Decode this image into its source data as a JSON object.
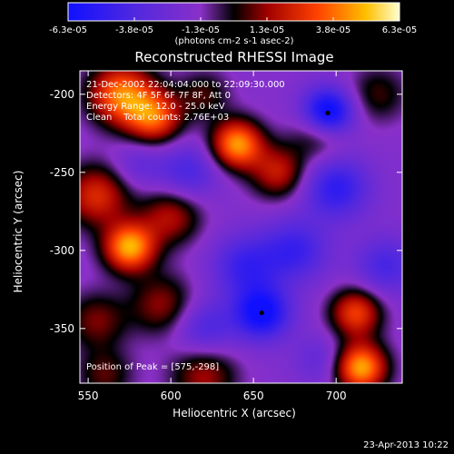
{
  "chart_data": {
    "type": "heatmap",
    "title": "Reconstructed RHESSI Image",
    "xlabel": "Heliocentric X (arcsec)",
    "ylabel": "Heliocentric Y (arcsec)",
    "xlim": [
      545,
      740
    ],
    "ylim": [
      -385,
      -185
    ],
    "xticks": [
      550,
      600,
      650,
      700
    ],
    "yticks": [
      -200,
      -250,
      -300,
      -350
    ],
    "colorbar": {
      "ticks": [
        "-6.3e-05",
        "-3.8e-05",
        "-1.3e-05",
        "1.3e-05",
        "3.8e-05",
        "6.3e-05"
      ],
      "range": [
        -6.3e-05,
        6.3e-05
      ],
      "unit_label": "(photons cm-2 s-1 asec-2)"
    },
    "info_lines": [
      "21-Dec-2002 22:04:04.000 to 22:09:30.000",
      "Detectors: 4F 5F 6F 7F 8F, Att 0",
      "Energy Range: 12.0 - 25.0 keV",
      "Clean    Total counts: 2.76E+03"
    ],
    "peak_text": "Position of Peak = [575,-298]",
    "blobs": [
      {
        "x": 575,
        "y": -298,
        "v": 6.3e-05,
        "s": 11
      },
      {
        "x": 570,
        "y": -200,
        "v": 5.5e-05,
        "s": 14
      },
      {
        "x": 590,
        "y": -215,
        "v": 4.8e-05,
        "s": 12
      },
      {
        "x": 640,
        "y": -232,
        "v": 6e-05,
        "s": 11
      },
      {
        "x": 665,
        "y": -250,
        "v": 3.5e-05,
        "s": 12
      },
      {
        "x": 555,
        "y": -265,
        "v": 4e-05,
        "s": 14
      },
      {
        "x": 600,
        "y": -278,
        "v": 3.2e-05,
        "s": 13
      },
      {
        "x": 595,
        "y": -335,
        "v": 2.8e-05,
        "s": 14
      },
      {
        "x": 555,
        "y": -345,
        "v": 2.5e-05,
        "s": 13
      },
      {
        "x": 620,
        "y": -380,
        "v": 3e-05,
        "s": 14
      },
      {
        "x": 560,
        "y": -380,
        "v": 2.2e-05,
        "s": 12
      },
      {
        "x": 715,
        "y": -375,
        "v": 6.3e-05,
        "s": 11
      },
      {
        "x": 712,
        "y": -340,
        "v": 4.5e-05,
        "s": 11
      },
      {
        "x": 690,
        "y": -225,
        "v": 2.5e-05,
        "s": 12
      },
      {
        "x": 725,
        "y": -200,
        "v": 2e-05,
        "s": 13
      },
      {
        "x": 620,
        "y": -200,
        "v": 2e-05,
        "s": 11
      },
      {
        "x": 645,
        "y": -310,
        "v": -3e-05,
        "s": 14
      },
      {
        "x": 655,
        "y": -340,
        "v": -5e-05,
        "s": 12
      },
      {
        "x": 695,
        "y": -212,
        "v": -6e-05,
        "s": 11
      },
      {
        "x": 700,
        "y": -260,
        "v": -3.5e-05,
        "s": 14
      },
      {
        "x": 675,
        "y": -300,
        "v": -3e-05,
        "s": 14
      },
      {
        "x": 610,
        "y": -250,
        "v": -2.5e-05,
        "s": 13
      },
      {
        "x": 620,
        "y": -350,
        "v": -2.5e-05,
        "s": 13
      },
      {
        "x": 730,
        "y": -310,
        "v": -2.5e-05,
        "s": 13
      },
      {
        "x": 580,
        "y": -245,
        "v": -1.5e-05,
        "s": 11
      },
      {
        "x": 690,
        "y": -370,
        "v": -1.5e-05,
        "s": 11
      }
    ],
    "markers": [
      {
        "x": 695,
        "y": -212
      },
      {
        "x": 655,
        "y": -340
      }
    ],
    "colors": {
      "background": "#000000",
      "text": "#ffffff"
    }
  },
  "footer": {
    "timestamp": "23-Apr-2013 10:22"
  }
}
